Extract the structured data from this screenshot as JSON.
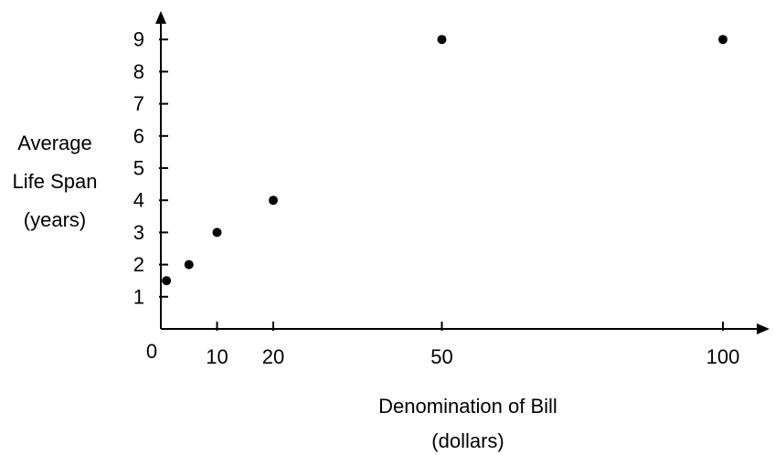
{
  "chart_data": {
    "type": "scatter",
    "title": "",
    "xlabel": [
      "Denomination of Bill",
      "(dollars)"
    ],
    "ylabel": [
      "Average",
      "Life Span",
      "(years)"
    ],
    "x_ticks": [
      10,
      20,
      50,
      100
    ],
    "y_ticks": [
      1,
      2,
      3,
      4,
      5,
      6,
      7,
      8,
      9
    ],
    "origin_label": "0",
    "xlim": [
      0,
      100
    ],
    "ylim": [
      0,
      9
    ],
    "grid": false,
    "marker_color": "#000000",
    "points": [
      {
        "x": 1,
        "y": 1.5
      },
      {
        "x": 5,
        "y": 2
      },
      {
        "x": 10,
        "y": 3
      },
      {
        "x": 20,
        "y": 4
      },
      {
        "x": 50,
        "y": 9
      },
      {
        "x": 100,
        "y": 9
      }
    ]
  }
}
